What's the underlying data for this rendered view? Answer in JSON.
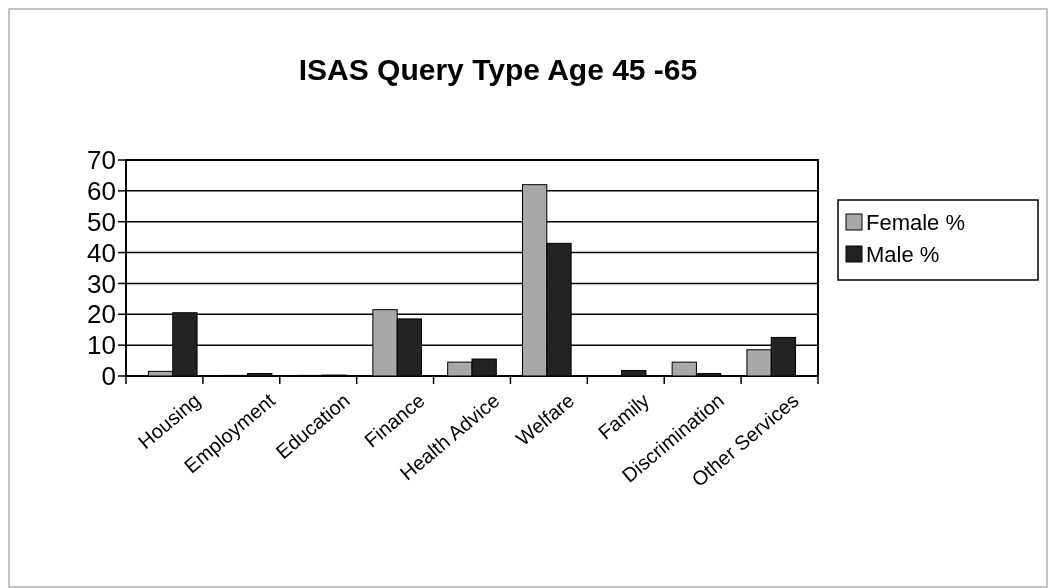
{
  "chart_data": {
    "type": "bar",
    "title": "ISAS Query Type Age 45 -65",
    "categories": [
      "Housing",
      "Employment",
      "Education",
      "Finance",
      "Health Advice",
      "Welfare",
      "Family",
      "Discrimination",
      "Other Services"
    ],
    "series": [
      {
        "name": "Female %",
        "color": "#a8a8a8",
        "values": [
          1.5,
          0.2,
          0.2,
          21.5,
          4.5,
          62,
          0,
          4.5,
          8.5
        ]
      },
      {
        "name": "Male %",
        "color": "#222222",
        "values": [
          20.5,
          0.8,
          0.3,
          18.5,
          5.5,
          43,
          1.8,
          0.8,
          12.5
        ]
      }
    ],
    "ylim": [
      0,
      70
    ],
    "yticks": [
      0,
      10,
      20,
      30,
      40,
      50,
      60,
      70
    ],
    "grid": "y",
    "legend": "right"
  }
}
